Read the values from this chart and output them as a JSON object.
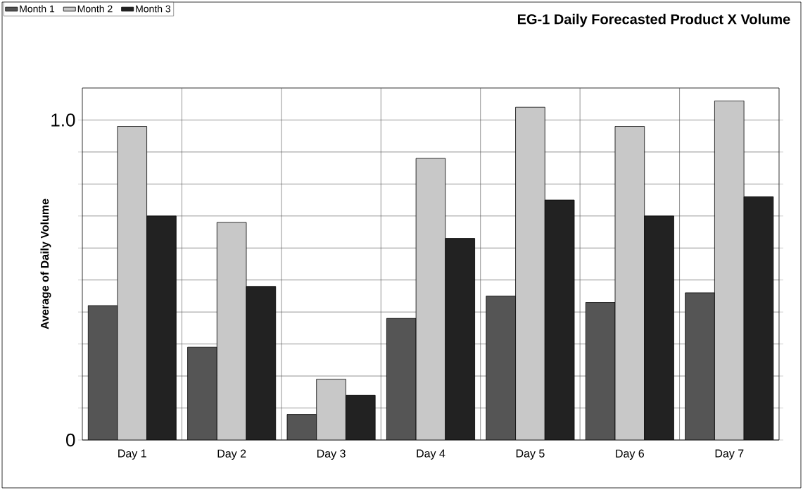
{
  "chart_data": {
    "type": "bar",
    "title": "EG-1 Daily Forecasted Product X Volume",
    "ylabel": "Average of Daily Volume",
    "categories": [
      "Day 1",
      "Day 2",
      "Day 3",
      "Day 4",
      "Day 5",
      "Day 6",
      "Day 7"
    ],
    "series": [
      {
        "name": "Month 1",
        "color": "#555555",
        "values": [
          0.42,
          0.29,
          0.08,
          0.38,
          0.45,
          0.43,
          0.46
        ]
      },
      {
        "name": "Month 2",
        "color": "#c8c8c8",
        "values": [
          0.98,
          0.68,
          0.19,
          0.88,
          1.04,
          0.98,
          1.06
        ]
      },
      {
        "name": "Month 3",
        "color": "#222222",
        "values": [
          0.7,
          0.48,
          0.14,
          0.63,
          0.75,
          0.7,
          0.76
        ]
      }
    ],
    "ylim": [
      0,
      1.1
    ],
    "yticks": [
      0,
      {
        "value": 0.1,
        "label": null
      },
      {
        "value": 0.2,
        "label": null
      },
      {
        "value": 0.3,
        "label": null
      },
      {
        "value": 0.4,
        "label": null
      },
      {
        "value": 0.5,
        "label": null
      },
      {
        "value": 0.6,
        "label": null
      },
      {
        "value": 0.7,
        "label": null
      },
      {
        "value": 0.8,
        "label": null
      },
      {
        "value": 0.9,
        "label": null
      },
      {
        "value": 1.0,
        "label": "1.0"
      }
    ],
    "grid": true,
    "legend": "top left"
  }
}
